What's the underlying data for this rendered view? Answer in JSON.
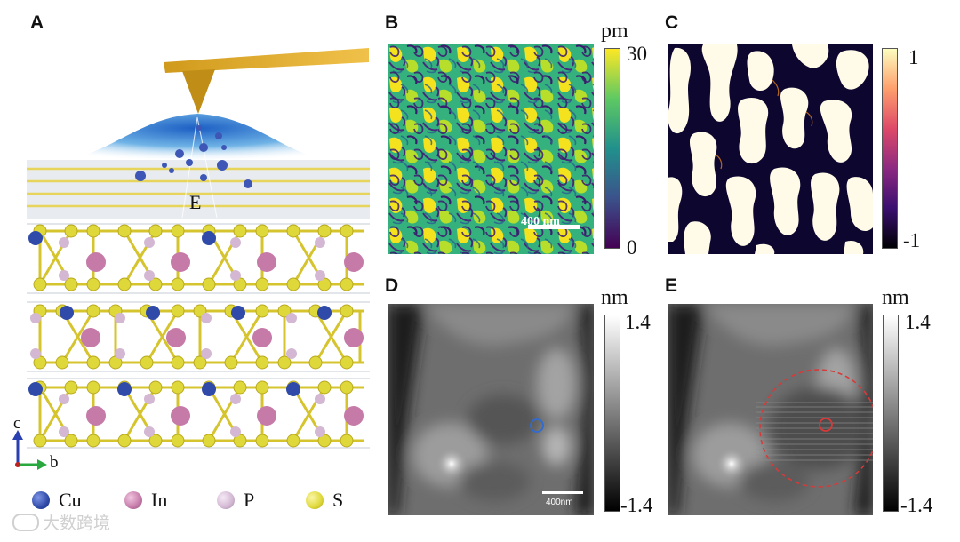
{
  "panels": {
    "a": "A",
    "b": "B",
    "c": "C",
    "d": "D",
    "e": "E"
  },
  "schematic": {
    "field_label": "E",
    "axis_c": "c",
    "axis_b": "b"
  },
  "legend": [
    {
      "symbol": "Cu",
      "color": "#2f4aa8"
    },
    {
      "symbol": "In",
      "color": "#c57aa8"
    },
    {
      "symbol": "P",
      "color": "#d3b7d3"
    },
    {
      "symbol": "S",
      "color": "#ded83a"
    }
  ],
  "colorbars": {
    "b": {
      "unit": "pm",
      "max": "30",
      "min": "0"
    },
    "c": {
      "max": "1",
      "min": "-1"
    },
    "d": {
      "unit": "nm",
      "max": "1.4",
      "min": "-1.4"
    },
    "e": {
      "unit": "nm",
      "max": "1.4",
      "min": "-1.4"
    }
  },
  "scalebars": {
    "b": "400 nm",
    "d": "400nm"
  },
  "watermark": "大数跨境"
}
